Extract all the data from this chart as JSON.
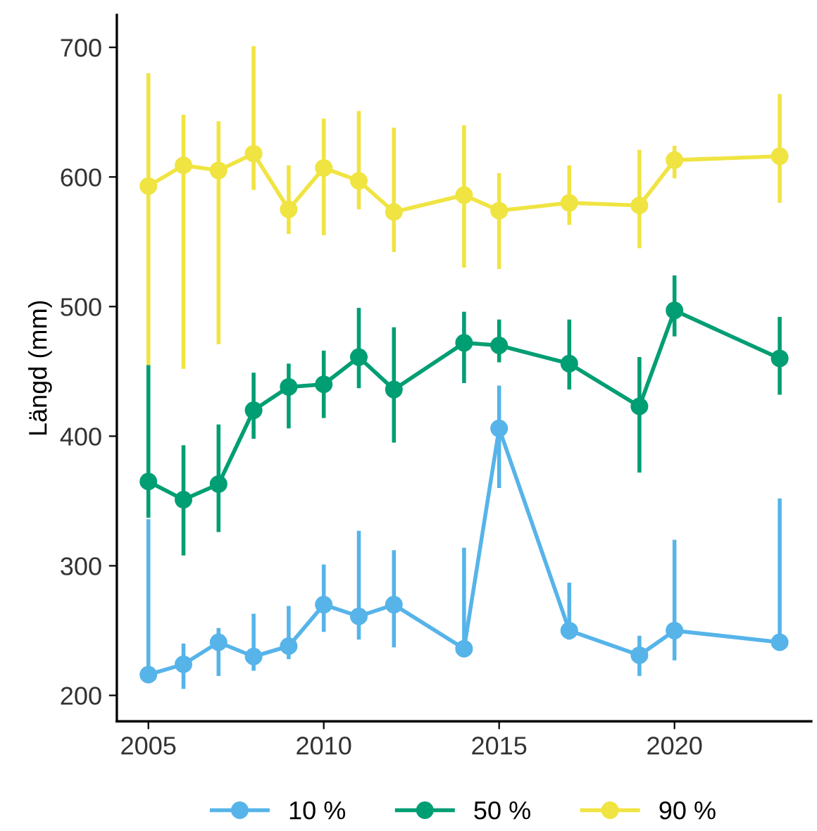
{
  "chart_data": {
    "type": "line",
    "ylabel": "Längd (mm)",
    "x": [
      2005,
      2006,
      2007,
      2008,
      2009,
      2010,
      2011,
      2012,
      2014,
      2015,
      2017,
      2019,
      2020,
      2023
    ],
    "xlim": [
      2004.1,
      2023.9
    ],
    "xticks": [
      2005,
      2010,
      2015,
      2020
    ],
    "ylim": [
      180,
      725
    ],
    "yticks": [
      200,
      300,
      400,
      500,
      600,
      700
    ],
    "grid": false,
    "legend": "bottom",
    "marker": "circle",
    "line_style": "solid",
    "series": [
      {
        "name": "10 %",
        "color": "#56b4e9",
        "values": [
          216,
          224,
          241,
          230,
          238,
          270,
          261,
          270,
          236,
          406,
          250,
          231,
          250,
          241
        ],
        "errors": [
          [
            216,
            336
          ],
          [
            205,
            240
          ],
          [
            215,
            252
          ],
          [
            219,
            263
          ],
          [
            228,
            269
          ],
          [
            249,
            301
          ],
          [
            243,
            327
          ],
          [
            237,
            312
          ],
          [
            232,
            314
          ],
          [
            360,
            439
          ],
          [
            243,
            287
          ],
          [
            215,
            246
          ],
          [
            227,
            320
          ],
          [
            240,
            352
          ]
        ]
      },
      {
        "name": "50 %",
        "color": "#009e73",
        "values": [
          365,
          351,
          363,
          420,
          438,
          440,
          461,
          436,
          472,
          470,
          456,
          423,
          497,
          460
        ],
        "errors": [
          [
            337,
            455
          ],
          [
            308,
            393
          ],
          [
            326,
            409
          ],
          [
            398,
            449
          ],
          [
            406,
            456
          ],
          [
            414,
            466
          ],
          [
            437,
            499
          ],
          [
            395,
            484
          ],
          [
            441,
            496
          ],
          [
            457,
            490
          ],
          [
            436,
            490
          ],
          [
            372,
            461
          ],
          [
            477,
            524
          ],
          [
            432,
            492
          ]
        ]
      },
      {
        "name": "90 %",
        "color": "#f0e442",
        "values": [
          593,
          609,
          605,
          618,
          575,
          607,
          597,
          573,
          586,
          574,
          580,
          578,
          613,
          616
        ],
        "errors": [
          [
            455,
            680
          ],
          [
            452,
            648
          ],
          [
            471,
            643
          ],
          [
            590,
            701
          ],
          [
            556,
            609
          ],
          [
            555,
            645
          ],
          [
            575,
            651
          ],
          [
            542,
            638
          ],
          [
            530,
            640
          ],
          [
            529,
            603
          ],
          [
            563,
            609
          ],
          [
            545,
            621
          ],
          [
            599,
            624
          ],
          [
            580,
            664
          ]
        ]
      }
    ]
  }
}
